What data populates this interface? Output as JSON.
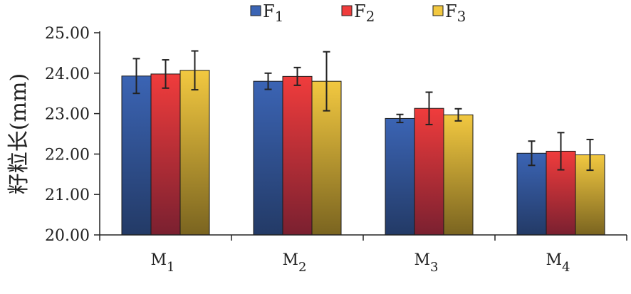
{
  "chart_data": {
    "type": "bar",
    "title": "",
    "xlabel": "",
    "ylabel": "籽粒长(mm)",
    "ylim": [
      20,
      25
    ],
    "yticks": [
      20,
      21,
      22,
      23,
      24,
      25
    ],
    "ytick_labels": [
      "20.00",
      "21.00",
      "22.00",
      "23.00",
      "24.00",
      "25.00"
    ],
    "grid": false,
    "legend_position": "top",
    "categories": [
      {
        "main": "M",
        "sub": "1"
      },
      {
        "main": "M",
        "sub": "2"
      },
      {
        "main": "M",
        "sub": "3"
      },
      {
        "main": "M",
        "sub": "4"
      }
    ],
    "series": [
      {
        "main": "F",
        "sub": "1",
        "color_top": "#3b64b4",
        "color_bottom": "#233a66",
        "values": [
          23.93,
          23.8,
          22.88,
          22.02
        ],
        "errors": [
          0.43,
          0.2,
          0.1,
          0.3
        ]
      },
      {
        "main": "F",
        "sub": "2",
        "color_top": "#f03c3c",
        "color_bottom": "#7a2030",
        "values": [
          23.98,
          23.92,
          23.13,
          22.07
        ],
        "errors": [
          0.35,
          0.22,
          0.4,
          0.46
        ]
      },
      {
        "main": "F",
        "sub": "3",
        "color_top": "#f2c840",
        "color_bottom": "#7a6420",
        "values": [
          24.07,
          23.8,
          22.97,
          21.98
        ],
        "errors": [
          0.48,
          0.73,
          0.15,
          0.38
        ]
      }
    ]
  }
}
